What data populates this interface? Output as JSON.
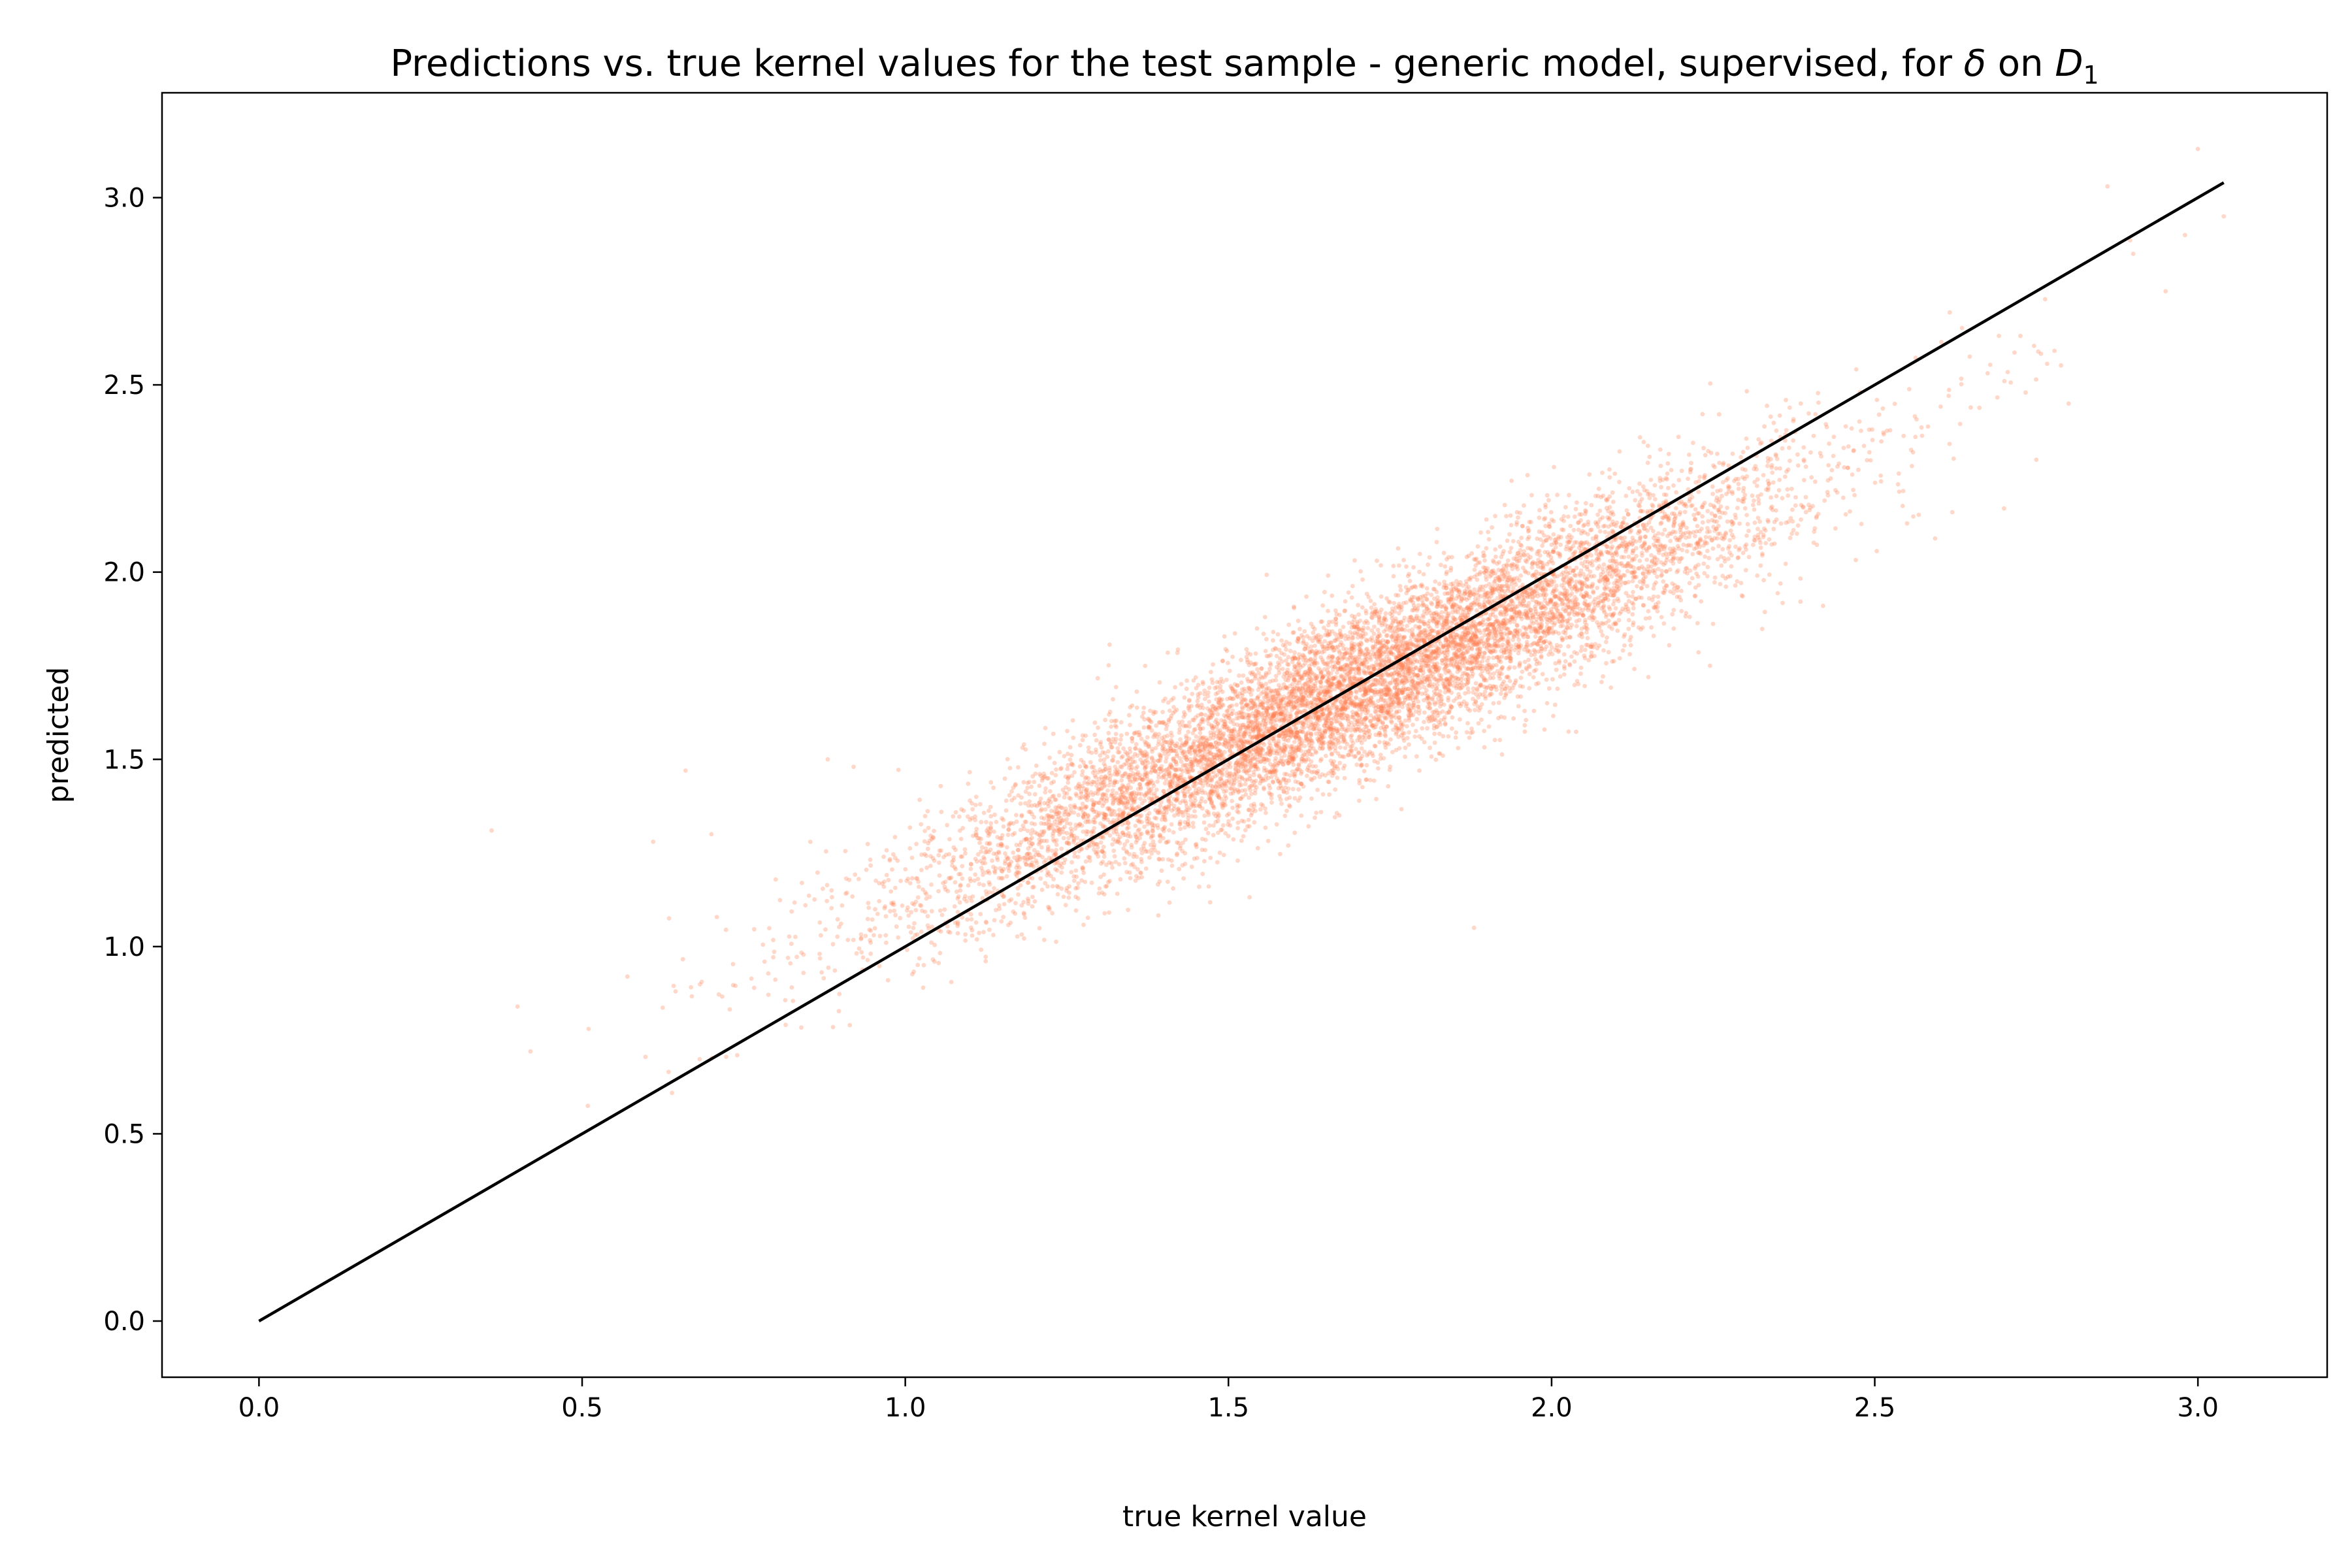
{
  "chart_data": {
    "type": "scatter",
    "title": "Predictions vs. true kernel values for the test sample - generic model, supervised, for",
    "title_math": {
      "symbol": "δ",
      "connector": "on",
      "var": "D",
      "subscript": "1"
    },
    "xlabel": "true kernel value",
    "ylabel": "predicted",
    "xlim": [
      -0.15,
      3.2
    ],
    "ylim": [
      -0.15,
      3.28
    ],
    "xticks": [
      0.0,
      0.5,
      1.0,
      1.5,
      2.0,
      2.5,
      3.0
    ],
    "xtick_labels": [
      "0.0",
      "0.5",
      "1.0",
      "1.5",
      "2.0",
      "2.5",
      "3.0"
    ],
    "yticks": [
      0.0,
      0.5,
      1.0,
      1.5,
      2.0,
      2.5,
      3.0
    ],
    "ytick_labels": [
      "0.0",
      "0.5",
      "1.0",
      "1.5",
      "2.0",
      "2.5",
      "3.0"
    ],
    "grid": false,
    "series": [
      {
        "kind": "scatter",
        "color": "#ff7f50",
        "alpha": 0.3,
        "distribution": {
          "count": 9000,
          "x_center": 1.7,
          "x_spread": 0.33,
          "y_slope": 0.8,
          "y_intercept": 0.33,
          "y_noise": 0.11
        },
        "outliers": [
          {
            "x": 0.36,
            "y": 1.31
          },
          {
            "x": 0.4,
            "y": 0.84
          },
          {
            "x": 0.42,
            "y": 0.72
          },
          {
            "x": 0.51,
            "y": 0.78
          },
          {
            "x": 0.57,
            "y": 0.92
          },
          {
            "x": 0.61,
            "y": 1.28
          },
          {
            "x": 0.66,
            "y": 1.47
          },
          {
            "x": 0.7,
            "y": 1.3
          },
          {
            "x": 0.84,
            "y": 1.17
          },
          {
            "x": 0.88,
            "y": 1.5
          },
          {
            "x": 0.92,
            "y": 1.48
          },
          {
            "x": 1.88,
            "y": 1.05
          },
          {
            "x": 2.42,
            "y": 1.91
          },
          {
            "x": 2.55,
            "y": 2.13
          },
          {
            "x": 2.62,
            "y": 2.16
          },
          {
            "x": 2.7,
            "y": 2.17
          },
          {
            "x": 2.75,
            "y": 2.3
          },
          {
            "x": 2.8,
            "y": 2.45
          },
          {
            "x": 2.86,
            "y": 3.03
          },
          {
            "x": 2.9,
            "y": 2.85
          },
          {
            "x": 2.95,
            "y": 2.75
          },
          {
            "x": 3.0,
            "y": 3.13
          },
          {
            "x": 3.04,
            "y": 2.95
          },
          {
            "x": 2.98,
            "y": 2.9
          }
        ]
      },
      {
        "kind": "line",
        "color": "#000000",
        "x": [
          0.0,
          3.04
        ],
        "y": [
          0.0,
          3.04
        ]
      }
    ]
  }
}
